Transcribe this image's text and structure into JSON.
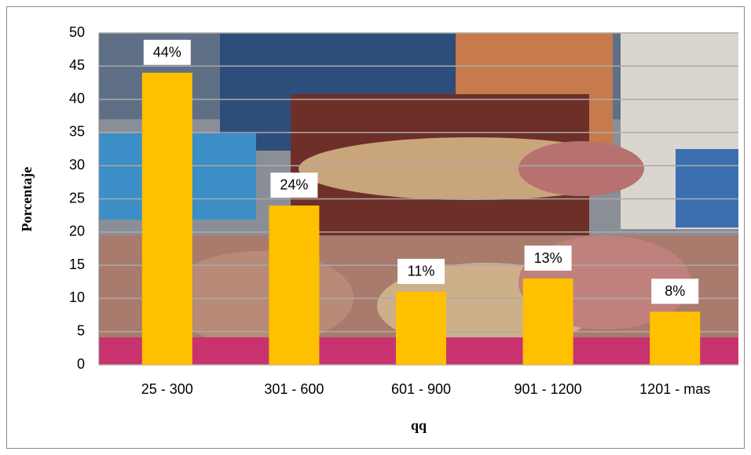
{
  "chart_data": {
    "type": "bar",
    "x_label": "qq",
    "y_label": "Porcentaje",
    "categories": [
      "25 - 300",
      "301 - 600",
      "601 - 900",
      "901 - 1200",
      "1201 - mas"
    ],
    "values": [
      44,
      24,
      11,
      13,
      8
    ],
    "value_labels": [
      "44%",
      "24%",
      "11%",
      "13%",
      "8%"
    ],
    "color": "#ffc000",
    "ylim": [
      0,
      50
    ],
    "yticks": [
      0,
      5,
      10,
      15,
      20,
      25,
      30,
      35,
      40,
      45,
      50
    ],
    "grid": true
  }
}
